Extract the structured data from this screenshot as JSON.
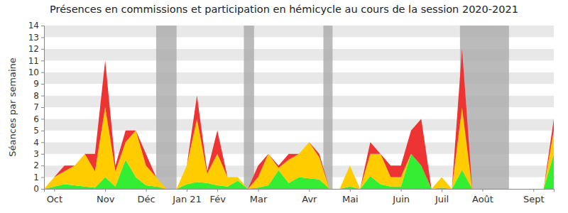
{
  "chart_data": {
    "type": "area",
    "title": "Présences en commissions et participation en hémicycle au cours de la session 2020-2021",
    "y_label": "Séances par semaine",
    "categories": [
      null,
      "Oct",
      null,
      null,
      null,
      null,
      "Nov",
      null,
      null,
      null,
      "Déc",
      null,
      null,
      null,
      "Jan 21",
      null,
      null,
      "Fév",
      null,
      null,
      null,
      "Mar",
      null,
      null,
      null,
      null,
      "Avr",
      null,
      null,
      null,
      "Mai",
      null,
      null,
      null,
      null,
      "Juin",
      null,
      null,
      null,
      "Juil",
      null,
      null,
      null,
      "Août",
      null,
      null,
      null,
      null,
      "Sept",
      null,
      null
    ],
    "series": [
      {
        "color": "#33ee33",
        "values": [
          0,
          0.2,
          0.4,
          0.3,
          0.2,
          0.1,
          1,
          0.2,
          2.5,
          1,
          0.3,
          0.2,
          0,
          0,
          0.4,
          0.6,
          0.5,
          0.3,
          0.2,
          0.7,
          0,
          0.1,
          0.3,
          1.6,
          0.5,
          1,
          0.9,
          0.8,
          0,
          0,
          0.2,
          0,
          1.1,
          0.4,
          0.2,
          0.2,
          3,
          2,
          0,
          0.1,
          0,
          1.6,
          0,
          0,
          0,
          0,
          0,
          0,
          0,
          0,
          3
        ]
      },
      {
        "color": "#ffcc00",
        "values": [
          0,
          0.8,
          1.1,
          1.7,
          2.8,
          1.4,
          6,
          1.3,
          1.5,
          4,
          1.7,
          0.8,
          0,
          0,
          1.6,
          5.4,
          0.8,
          2.7,
          0.8,
          0.3,
          0,
          0.9,
          2.7,
          0.2,
          2,
          2,
          3.1,
          1.9,
          0,
          0,
          1.8,
          0,
          1.9,
          2.6,
          0.8,
          0.8,
          0,
          0,
          0,
          0.9,
          0,
          5.4,
          0,
          0,
          0,
          0,
          0,
          0,
          0,
          0,
          2
        ]
      },
      {
        "color": "#ee3333",
        "values": [
          0,
          0,
          0.5,
          0,
          0,
          1.5,
          4,
          0.5,
          1,
          0,
          1,
          0,
          0,
          0,
          0,
          2,
          0.2,
          2,
          0,
          0,
          0,
          1,
          0,
          0.2,
          0.5,
          0,
          0,
          0.3,
          0,
          0,
          0,
          0,
          1,
          0,
          1,
          1,
          2,
          4,
          0,
          0,
          0,
          5,
          0,
          0,
          0,
          0,
          0,
          0,
          0,
          0,
          1
        ]
      }
    ],
    "shaded_periods": [
      {
        "start": 11,
        "end": 13
      },
      {
        "start": 19.6,
        "end": 20.6
      },
      {
        "start": 27.4,
        "end": 28.3
      },
      {
        "start": 40.8,
        "end": 45.6
      }
    ],
    "stacked": true,
    "grid": true,
    "ylim": [
      0,
      14
    ],
    "yticks": [
      0,
      1,
      2,
      3,
      4,
      5,
      6,
      7,
      8,
      9,
      10,
      11,
      12,
      13,
      14
    ]
  }
}
